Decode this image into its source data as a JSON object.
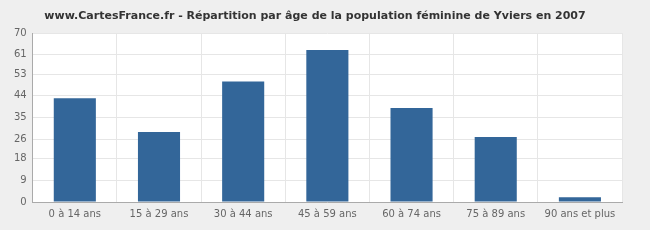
{
  "chart_data": {
    "type": "bar",
    "title": "www.CartesFrance.fr - Répartition par âge de la population féminine de Yviers en 2007",
    "categories": [
      "0 à 14 ans",
      "15 à 29 ans",
      "30 à 44 ans",
      "45 à 59 ans",
      "60 à 74 ans",
      "75 à 89 ans",
      "90 ans et plus"
    ],
    "values": [
      43,
      29,
      50,
      63,
      39,
      27,
      2
    ],
    "color": "#336699",
    "ylim": [
      0,
      70
    ],
    "yticks": [
      0,
      9,
      18,
      26,
      35,
      44,
      53,
      61,
      70
    ],
    "grid": true
  }
}
